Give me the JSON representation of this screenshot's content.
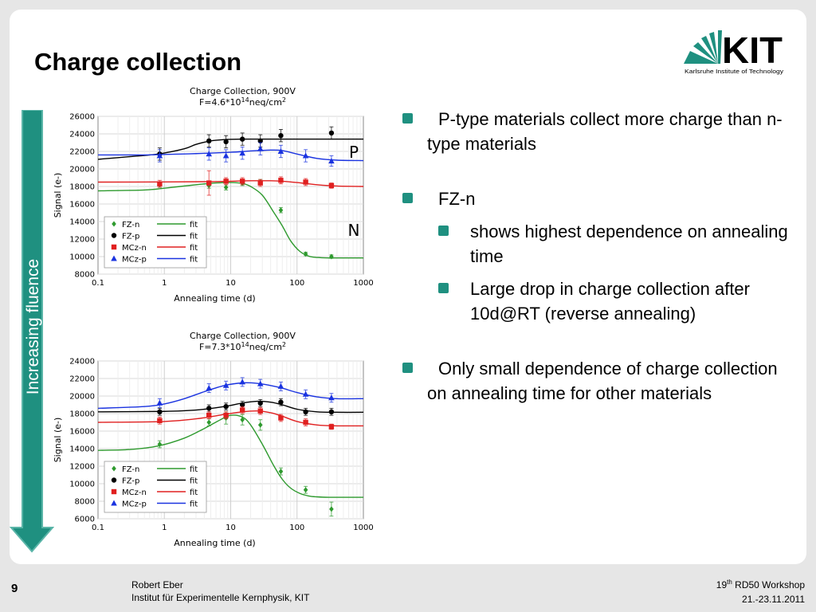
{
  "slide": {
    "title": "Charge collection",
    "page_number": "9",
    "author": "Robert Eber",
    "institute": "Institut für Experimentelle Kernphysik, KIT",
    "workshop_ordinal": "19",
    "workshop_suffix": "th",
    "workshop_name": "RD50 Workshop",
    "dates": "21.-23.11.2011",
    "logo_text": "KIT",
    "logo_subtitle": "Karlsruhe Institute of Technology",
    "arrow_label": "Increasing fluence",
    "colors": {
      "accent": "#1f9080",
      "fz_n": "#2e9a2e",
      "fz_p": "#000000",
      "mcz_n": "#e02020",
      "mcz_p": "#1a33e0"
    }
  },
  "bullets": [
    {
      "text": "P-type materials collect more charge than n-type materials",
      "sub": []
    },
    {
      "text": "FZ-n",
      "sub": [
        "shows highest dependence on annealing time",
        "Large drop in charge collection after 10d@RT (reverse annealing)"
      ]
    },
    {
      "text": "Only small dependence of charge collection on annealing time for other materials",
      "sub": []
    }
  ],
  "chart_data": [
    {
      "type": "scatter",
      "title": "Charge Collection, 900V",
      "subtitle_prefix": "F=4.6*10",
      "subtitle_exp": "14",
      "subtitle_unit": "neq/cm",
      "subtitle_unit_exp": "2",
      "xlabel": "Annealing time (d)",
      "ylabel": "Signal (e-)",
      "xscale": "log",
      "xlim": [
        0.1,
        1000
      ],
      "ylim": [
        8000,
        26000
      ],
      "xticks": [
        "0.1",
        "1",
        "10",
        "100",
        "1000"
      ],
      "yticks": [
        "8000",
        "10000",
        "12000",
        "14000",
        "16000",
        "18000",
        "20000",
        "22000",
        "24000",
        "26000"
      ],
      "grid": true,
      "legend_position": "bottom-left",
      "annotations": [
        {
          "text": "P"
        },
        {
          "text": "N"
        }
      ],
      "series": [
        {
          "name": "FZ-n",
          "color": "#2e9a2e",
          "marker": "diamond",
          "x": [
            0.85,
            4.7,
            8.5,
            15,
            28,
            57,
            135,
            330
          ],
          "y": [
            18200,
            18100,
            17900,
            18400,
            18500,
            15300,
            10300,
            10000
          ],
          "err": [
            300,
            300,
            300,
            300,
            300,
            300,
            200,
            200
          ],
          "fit_x": [
            0.1,
            0.5,
            1,
            3,
            6,
            10,
            15,
            20,
            30,
            45,
            60,
            80,
            110,
            150,
            200,
            300,
            500,
            1000
          ],
          "fit_y": [
            17500,
            17600,
            17800,
            18200,
            18400,
            18450,
            18350,
            18000,
            17000,
            15000,
            13500,
            11800,
            10600,
            10050,
            9900,
            9850,
            9850,
            9850
          ]
        },
        {
          "name": "FZ-p",
          "color": "#000000",
          "marker": "circle",
          "x": [
            0.85,
            4.7,
            8.5,
            15,
            28,
            57,
            330
          ],
          "y": [
            21700,
            23200,
            23100,
            23400,
            23200,
            23800,
            24100
          ],
          "err": [
            700,
            700,
            700,
            700,
            700,
            700,
            700
          ],
          "fit_x": [
            0.1,
            0.3,
            0.8,
            2,
            3,
            5,
            8,
            15,
            30,
            60,
            100,
            300,
            1000
          ],
          "fit_y": [
            21100,
            21400,
            21700,
            22300,
            22800,
            23200,
            23350,
            23400,
            23400,
            23400,
            23400,
            23400,
            23400
          ]
        },
        {
          "name": "MCz-n",
          "color": "#e02020",
          "marker": "square",
          "x": [
            0.85,
            4.7,
            8.5,
            15,
            28,
            57,
            135,
            330
          ],
          "y": [
            18300,
            18400,
            18600,
            18600,
            18400,
            18700,
            18500,
            18100
          ],
          "err": [
            400,
            1400,
            400,
            400,
            400,
            400,
            400,
            300
          ],
          "fit_x": [
            0.1,
            1,
            5,
            10,
            20,
            40,
            60,
            100,
            200,
            400,
            1000
          ],
          "fit_y": [
            18500,
            18520,
            18550,
            18600,
            18650,
            18650,
            18600,
            18450,
            18200,
            18050,
            18000
          ]
        },
        {
          "name": "MCz-p",
          "color": "#1a33e0",
          "marker": "triangle",
          "x": [
            0.85,
            4.7,
            8.5,
            15,
            28,
            57,
            135,
            330
          ],
          "y": [
            21500,
            21700,
            21500,
            21800,
            22300,
            22000,
            21500,
            20900
          ],
          "err": [
            700,
            700,
            700,
            700,
            700,
            700,
            700,
            600
          ],
          "fit_x": [
            0.1,
            0.5,
            1,
            3,
            10,
            20,
            40,
            60,
            100,
            200,
            400,
            1000
          ],
          "fit_y": [
            21600,
            21600,
            21650,
            21750,
            21900,
            22050,
            22150,
            22100,
            21700,
            21200,
            21000,
            20950
          ]
        }
      ]
    },
    {
      "type": "scatter",
      "title": "Charge Collection, 900V",
      "subtitle_prefix": "F=7.3*10",
      "subtitle_exp": "14",
      "subtitle_unit": "neq/cm",
      "subtitle_unit_exp": "2",
      "xlabel": "Annealing time (d)",
      "ylabel": "Signal (e-)",
      "xscale": "log",
      "xlim": [
        0.1,
        1000
      ],
      "ylim": [
        6000,
        24000
      ],
      "xticks": [
        "0.1",
        "1",
        "10",
        "100",
        "1000"
      ],
      "yticks": [
        "6000",
        "8000",
        "10000",
        "12000",
        "14000",
        "16000",
        "18000",
        "20000",
        "22000",
        "24000"
      ],
      "grid": true,
      "legend_position": "bottom-left",
      "annotations": [],
      "series": [
        {
          "name": "FZ-n",
          "color": "#2e9a2e",
          "marker": "diamond",
          "x": [
            0.85,
            4.7,
            8.5,
            15,
            28,
            57,
            135,
            330
          ],
          "y": [
            14500,
            17000,
            17500,
            17300,
            16700,
            11400,
            9300,
            7100
          ],
          "err": [
            400,
            400,
            700,
            600,
            600,
            400,
            400,
            800
          ],
          "fit_x": [
            0.1,
            0.3,
            0.8,
            2,
            4,
            7,
            10,
            15,
            20,
            30,
            45,
            60,
            80,
            110,
            150,
            200,
            300,
            500,
            1000
          ],
          "fit_y": [
            13800,
            13900,
            14300,
            15200,
            16300,
            17300,
            17800,
            17600,
            16700,
            14500,
            12000,
            10500,
            9500,
            8900,
            8600,
            8500,
            8450,
            8450,
            8450
          ]
        },
        {
          "name": "FZ-p",
          "color": "#000000",
          "marker": "circle",
          "x": [
            0.85,
            4.7,
            8.5,
            15,
            28,
            57,
            135,
            330
          ],
          "y": [
            18200,
            18600,
            18800,
            19000,
            19200,
            19300,
            18200,
            18200
          ],
          "err": [
            400,
            400,
            400,
            400,
            400,
            400,
            400,
            400
          ],
          "fit_x": [
            0.1,
            1,
            3,
            8,
            15,
            25,
            40,
            60,
            100,
            200,
            400,
            1000
          ],
          "fit_y": [
            18200,
            18250,
            18400,
            18800,
            19200,
            19400,
            19300,
            19000,
            18500,
            18200,
            18150,
            18150
          ]
        },
        {
          "name": "MCz-n",
          "color": "#e02020",
          "marker": "square",
          "x": [
            0.85,
            4.7,
            8.5,
            15,
            28,
            57,
            135,
            330
          ],
          "y": [
            17200,
            17800,
            17800,
            18400,
            18300,
            17500,
            17000,
            16500
          ],
          "err": [
            400,
            400,
            400,
            400,
            400,
            400,
            400,
            300
          ],
          "fit_x": [
            0.1,
            1,
            3,
            8,
            15,
            25,
            40,
            60,
            100,
            200,
            400,
            1000
          ],
          "fit_y": [
            17000,
            17100,
            17400,
            17900,
            18200,
            18300,
            18100,
            17700,
            17100,
            16700,
            16600,
            16600
          ]
        },
        {
          "name": "MCz-p",
          "color": "#1a33e0",
          "marker": "triangle",
          "x": [
            0.85,
            4.7,
            8.5,
            15,
            28,
            57,
            135,
            330
          ],
          "y": [
            19200,
            20900,
            21200,
            21600,
            21400,
            21100,
            20200,
            19800
          ],
          "err": [
            500,
            500,
            500,
            500,
            500,
            500,
            500,
            500
          ],
          "fit_x": [
            0.1,
            0.5,
            1,
            2,
            4,
            8,
            15,
            25,
            40,
            60,
            100,
            200,
            400,
            1000
          ],
          "fit_y": [
            18600,
            18800,
            19100,
            19700,
            20500,
            21200,
            21500,
            21450,
            21200,
            20900,
            20400,
            19900,
            19700,
            19700
          ]
        }
      ]
    }
  ]
}
